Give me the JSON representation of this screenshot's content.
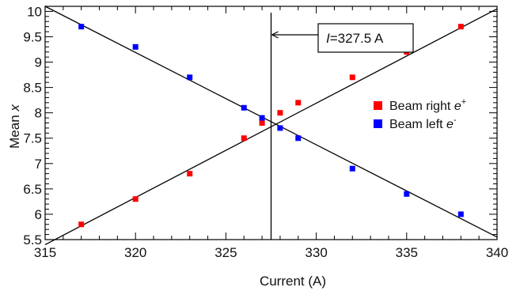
{
  "chart_data": {
    "type": "scatter",
    "xlabel": "Current (A)",
    "ylabel_prefix": "Mean ",
    "ylabel_var": "x",
    "xlim": [
      315,
      340
    ],
    "ylim": [
      5.5,
      10.1
    ],
    "xticks": [
      315,
      320,
      325,
      330,
      335,
      340
    ],
    "xtick_labels": [
      "315",
      "320",
      "325",
      "330",
      "335",
      "340"
    ],
    "yticks": [
      5.5,
      6,
      6.5,
      7,
      7.5,
      8,
      8.5,
      9,
      9.5,
      10
    ],
    "ytick_labels": [
      "5.5",
      "6",
      "6.5",
      "7",
      "7.5",
      "8",
      "8.5",
      "9",
      "9.5",
      "10"
    ],
    "series": [
      {
        "label": "Beam right ",
        "label_var": "e",
        "label_sup": "+",
        "color": "#ff0000",
        "x": [
          317,
          320,
          323,
          326,
          327,
          328,
          329,
          332,
          335,
          338
        ],
        "y": [
          5.8,
          6.3,
          6.8,
          7.5,
          7.8,
          8.0,
          8.2,
          8.7,
          9.2,
          9.7
        ],
        "fit": {
          "x": [
            315,
            340
          ],
          "y": [
            5.4,
            10.05
          ]
        }
      },
      {
        "label": "Beam left ",
        "label_var": "e",
        "label_sup": "-",
        "color": "#0000ff",
        "x": [
          317,
          320,
          323,
          326,
          327,
          328,
          329,
          332,
          335,
          338
        ],
        "y": [
          9.7,
          9.3,
          8.7,
          8.1,
          7.9,
          7.7,
          7.5,
          6.9,
          6.4,
          6.0
        ],
        "fit": {
          "x": [
            315,
            340
          ],
          "y": [
            10.1,
            5.55
          ]
        }
      }
    ],
    "vline_x": 327.5,
    "annotation": {
      "var": "I",
      "text": "=327.5 A"
    },
    "legend_position": "right",
    "grid": false
  }
}
